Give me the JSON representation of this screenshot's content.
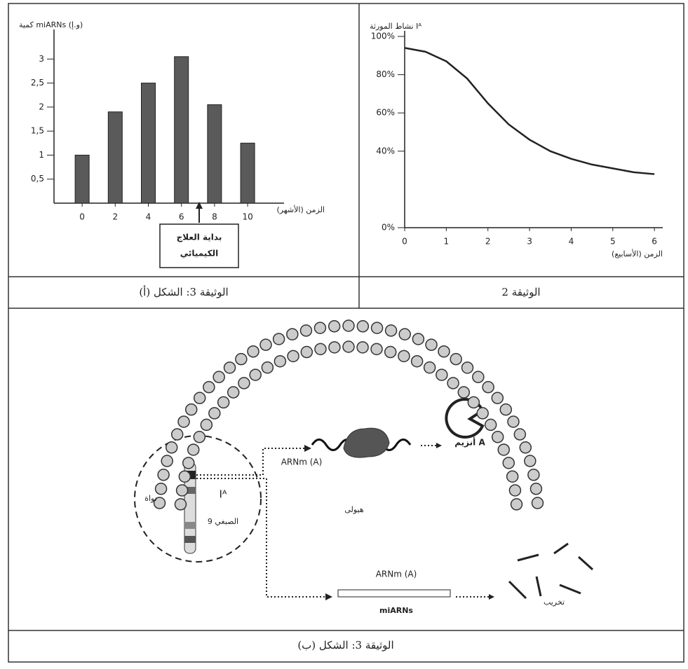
{
  "chart_data": [
    {
      "type": "bar",
      "y_label": "كمية miARNs (و.إ)",
      "x_label": "الزمن (الأشهر)",
      "x": [
        0,
        2,
        4,
        6,
        8,
        10
      ],
      "xticks": [
        0,
        2,
        4,
        6,
        8,
        10
      ],
      "xlim": [
        -1.7,
        12.2
      ],
      "values": [
        1.0,
        1.9,
        2.5,
        3.05,
        2.05,
        1.25
      ],
      "color": "#5a5a5a",
      "ylim": [
        0,
        3.5
      ],
      "yticks": [
        {
          "value": 0.5,
          "label": "0,5"
        },
        1,
        {
          "value": 1.5,
          "label": "1,5"
        },
        2,
        {
          "value": 2.5,
          "label": "2,5"
        },
        3
      ],
      "annotation": [
        "بداية العلاج",
        "الكيميائي"
      ]
    },
    {
      "type": "line",
      "y_label": "نشاط المورثة Iᴬ",
      "x_label": "الزمن (الأسابيع)",
      "x": [
        0,
        0.5,
        1,
        1.5,
        2,
        2.5,
        3,
        3.5,
        4,
        4.5,
        5,
        5.5,
        6
      ],
      "values": [
        94,
        92,
        87,
        78,
        65,
        54,
        46,
        40,
        36,
        33,
        31,
        29,
        28
      ],
      "color": "#222",
      "xlim": [
        0,
        6.2
      ],
      "xticks": [
        0,
        1,
        2,
        3,
        4,
        5,
        6
      ],
      "ylim": [
        0,
        100
      ],
      "yticks": [
        {
          "value": 0,
          "label": "0%"
        },
        {
          "value": 40,
          "label": "40%"
        },
        {
          "value": 60,
          "label": "60%"
        },
        {
          "value": 80,
          "label": "80%"
        },
        {
          "value": 100,
          "label": "100%"
        }
      ]
    }
  ],
  "captions": [
    "الوثيقة 3: الشكل (أ)",
    "الوثيقة 2",
    "الوثيقة 3: الشكل (ب)"
  ],
  "diagram": {
    "nucleus": "نواة",
    "gene": "Iᴬ",
    "chromosome": "الصبغي 9",
    "cytoplasm": "هيولى",
    "mrna_top": "ARNm (A)",
    "enzyme": "أنزيم A",
    "mrna_bottom": "ARNm (A)",
    "mirnas": "miARNs",
    "destruction": "تخريب"
  }
}
